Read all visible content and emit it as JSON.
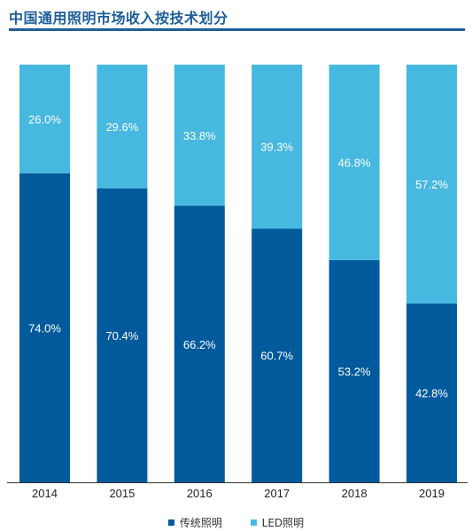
{
  "title": "中国通用照明市场收入按技术划分",
  "chart_data": {
    "type": "bar",
    "stacked": true,
    "categories": [
      "2014",
      "2015",
      "2016",
      "2017",
      "2018",
      "2019"
    ],
    "ylim": [
      0,
      100
    ],
    "series": [
      {
        "name": "传统照明",
        "color": "#015a9c",
        "values": [
          74.0,
          70.4,
          66.2,
          60.7,
          53.2,
          42.8
        ],
        "labels": [
          "74.0%",
          "70.4%",
          "66.2%",
          "60.7%",
          "53.2%",
          "42.8%"
        ]
      },
      {
        "name": "LED照明",
        "color": "#47b8e0",
        "values": [
          26.0,
          29.6,
          33.8,
          39.3,
          46.8,
          57.2
        ],
        "labels": [
          "26.0%",
          "29.6%",
          "33.8%",
          "39.3%",
          "46.8%",
          "57.2%"
        ]
      }
    ],
    "legend_position": "bottom"
  }
}
